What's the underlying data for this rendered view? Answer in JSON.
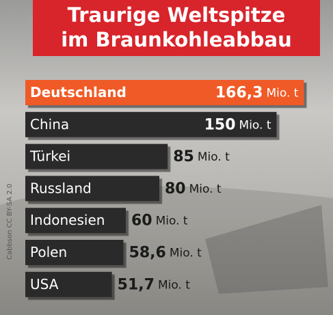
{
  "chart_data": {
    "type": "bar",
    "title": "Traurige Weltspitze",
    "subtitle": "im Braunkohleabbau",
    "categories": [
      "Deutschland",
      "China",
      "Türkei",
      "Russland",
      "Indonesien",
      "Polen",
      "USA"
    ],
    "values": [
      166.3,
      150,
      85,
      80,
      60,
      58.6,
      51.7
    ],
    "value_labels": [
      "166,3",
      "150",
      "85",
      "80",
      "60",
      "58,6",
      "51,7"
    ],
    "unit": "Mio. t",
    "colors": [
      "#f05a28",
      "#2b2b2b",
      "#2b2b2b",
      "#2b2b2b",
      "#2b2b2b",
      "#2b2b2b",
      "#2b2b2b"
    ],
    "credit": "Cabbson CC BY-SA 2.0"
  }
}
